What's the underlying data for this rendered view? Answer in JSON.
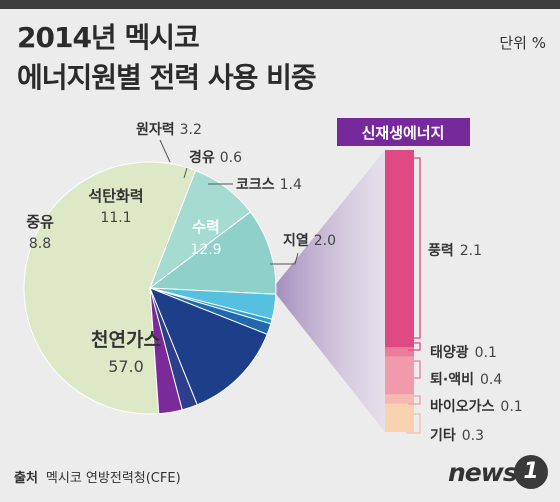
{
  "header": {
    "title_line1": "2014년 멕시코",
    "title_line2": "에너지원별 전력 사용 비중",
    "unit": "단위 %"
  },
  "renewable_label": "신재생에너지",
  "footer": {
    "source_label": "출처",
    "source_text": "멕시코 연방전력청(CFE)"
  },
  "logo": {
    "word": "news",
    "number": "1"
  },
  "chart_data": [
    {
      "type": "pie",
      "categories": [
        "천연가스",
        "중유",
        "석탄화력",
        "원자력",
        "경유",
        "코크스",
        "수력",
        "지열",
        "신재생에너지"
      ],
      "values": [
        57.0,
        8.8,
        11.1,
        3.2,
        0.6,
        1.4,
        12.9,
        2.0,
        3.0
      ],
      "value_labels": [
        "57.0",
        "8.8",
        "11.1",
        "3.2",
        "0.6",
        "1.4",
        "12.9",
        "2.0",
        ""
      ],
      "colors": [
        "#dde8c6",
        "#a6dbd2",
        "#8fd1c9",
        "#55c0df",
        "#2e9dd3",
        "#2268ae",
        "#1d3f8a",
        "#2d3f8c",
        "#7a2a99"
      ]
    },
    {
      "type": "bar",
      "title": "신재생에너지",
      "categories": [
        "풍력",
        "태양광",
        "퇴·액비",
        "바이오가스",
        "기타"
      ],
      "values": [
        2.1,
        0.1,
        0.4,
        0.1,
        0.3
      ],
      "value_labels": [
        "2.1",
        "0.1",
        "0.4",
        "0.1",
        "0.3"
      ],
      "colors": [
        "#e04a84",
        "#ec7b9c",
        "#f19aab",
        "#f5b9b2",
        "#f9d2af"
      ]
    }
  ]
}
